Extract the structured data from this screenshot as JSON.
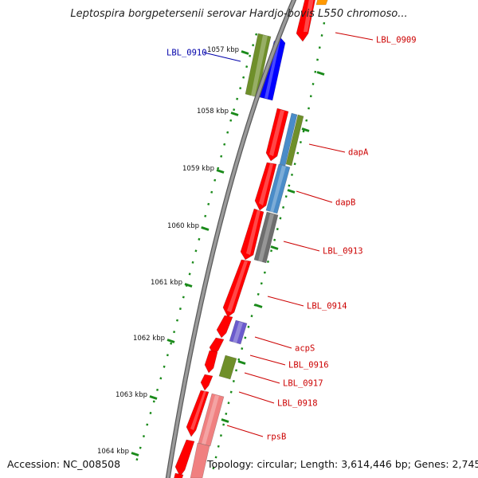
{
  "title": "Leptospira borgpetersenii serovar Hardjo-bovis L550 chromoso...",
  "footer": {
    "accession": "Accession: NC_008508",
    "summary": "Topology: circular; Length: 3,614,446 bp; Genes: 2,745"
  },
  "colors": {
    "backbone": "#8c8c8c",
    "tick_dots": "#1a8a1a",
    "label_red": "#cc0000",
    "label_blue": "#0000aa",
    "cds_red": "#ff0000",
    "olive": "#6f8f2a",
    "blue": "#0000ff",
    "steel_blue": "#4a8cc8",
    "gray": "#6e6e6e",
    "purple": "#6a5acd",
    "pink": "#f08080",
    "orange": "#ff9900"
  },
  "scale": {
    "ticks": [
      "1057 kbp",
      "1058 kbp",
      "1059 kbp",
      "1060 kbp",
      "1061 kbp",
      "1062 kbp",
      "1063 kbp",
      "1064 kbp"
    ]
  },
  "gene_labels": [
    {
      "text": "LBL_0909",
      "color": "red"
    },
    {
      "text": "LBL_0910",
      "color": "blue"
    },
    {
      "text": "dapA",
      "color": "red"
    },
    {
      "text": "dapB",
      "color": "red"
    },
    {
      "text": "LBL_0913",
      "color": "red"
    },
    {
      "text": "LBL_0914",
      "color": "red"
    },
    {
      "text": "acpS",
      "color": "red"
    },
    {
      "text": "LBL_0916",
      "color": "red"
    },
    {
      "text": "LBL_0917",
      "color": "red"
    },
    {
      "text": "LBL_0918",
      "color": "red"
    },
    {
      "text": "rpsB",
      "color": "red"
    }
  ]
}
